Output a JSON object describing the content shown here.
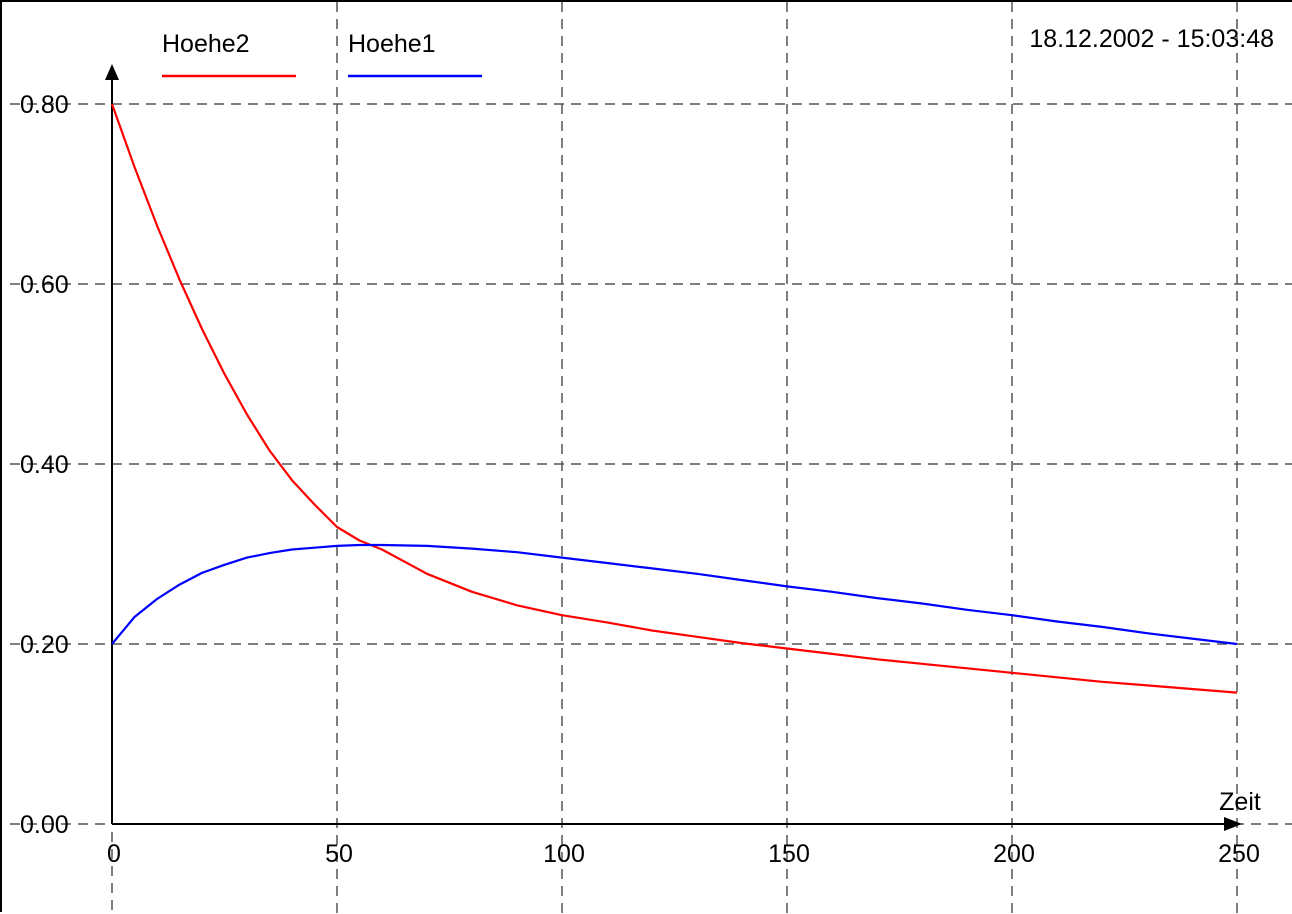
{
  "chart_data": {
    "type": "line",
    "title": "",
    "timestamp": "18.12.2002 - 15:03:48",
    "xlabel": "Zeit",
    "ylabel": "",
    "xlim": [
      0,
      250
    ],
    "ylim": [
      0,
      0.8
    ],
    "x_ticks": [
      0,
      50,
      100,
      150,
      200,
      250
    ],
    "x_tick_labels": [
      "0",
      "50",
      "100",
      "150",
      "200",
      "250"
    ],
    "y_ticks": [
      0,
      0.2,
      0.4,
      0.6,
      0.8
    ],
    "y_tick_labels": [
      "0.00",
      "0.20",
      "0.40",
      "0.60",
      "0.80"
    ],
    "grid": true,
    "grid_style": "dashed",
    "legend_position": "top-left",
    "series": [
      {
        "name": "Hoehe2",
        "color": "#ff0000",
        "x": [
          0,
          5,
          10,
          15,
          20,
          25,
          30,
          35,
          40,
          45,
          50,
          55,
          60,
          70,
          80,
          90,
          100,
          110,
          120,
          130,
          140,
          150,
          160,
          170,
          180,
          190,
          200,
          210,
          220,
          230,
          240,
          250
        ],
        "y": [
          0.8,
          0.73,
          0.665,
          0.605,
          0.55,
          0.5,
          0.455,
          0.415,
          0.382,
          0.355,
          0.33,
          0.315,
          0.305,
          0.278,
          0.258,
          0.243,
          0.232,
          0.224,
          0.215,
          0.208,
          0.201,
          0.195,
          0.189,
          0.183,
          0.178,
          0.173,
          0.168,
          0.163,
          0.158,
          0.154,
          0.15,
          0.146
        ]
      },
      {
        "name": "Hoehe1",
        "color": "#0000ff",
        "x": [
          0,
          5,
          10,
          15,
          20,
          25,
          30,
          35,
          40,
          45,
          50,
          55,
          60,
          70,
          80,
          90,
          100,
          110,
          120,
          130,
          140,
          150,
          160,
          170,
          180,
          190,
          200,
          210,
          220,
          230,
          240,
          250
        ],
        "y": [
          0.2,
          0.23,
          0.25,
          0.266,
          0.279,
          0.288,
          0.296,
          0.301,
          0.305,
          0.307,
          0.309,
          0.31,
          0.31,
          0.309,
          0.306,
          0.302,
          0.296,
          0.29,
          0.284,
          0.278,
          0.271,
          0.264,
          0.258,
          0.251,
          0.245,
          0.238,
          0.232,
          0.225,
          0.219,
          0.212,
          0.206,
          0.2
        ]
      }
    ]
  }
}
